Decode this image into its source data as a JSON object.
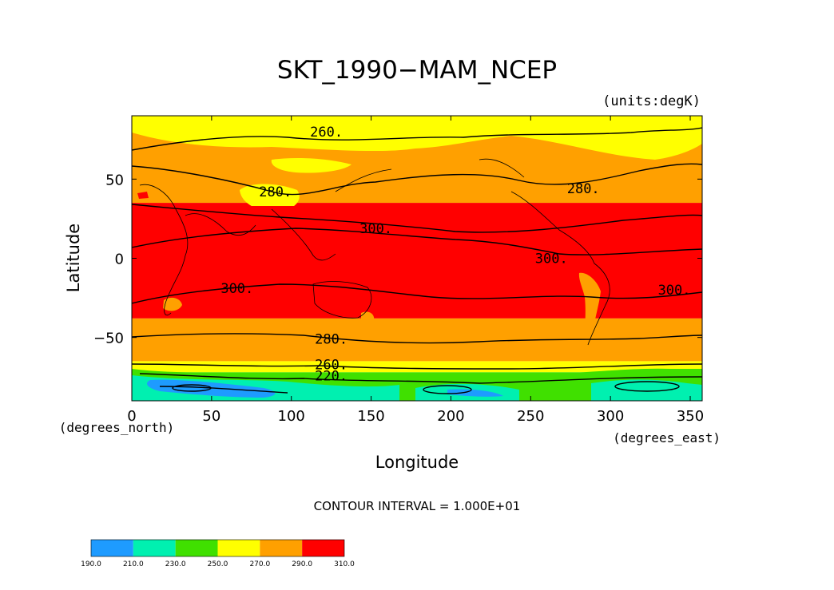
{
  "chart_data": {
    "type": "heatmap",
    "title": "SKT_1990−MAM_NCEP",
    "units_label": "(units:degK)",
    "xlabel": "Longitude",
    "ylabel": "Latitude",
    "x_unit_label": "(degrees_east)",
    "y_unit_label": "(degrees_north)",
    "xlim": [
      0,
      357.5
    ],
    "ylim": [
      -90,
      90
    ],
    "x_ticks": [
      {
        "value": 0,
        "label": "0"
      },
      {
        "value": 50,
        "label": "50"
      },
      {
        "value": 100,
        "label": "100"
      },
      {
        "value": 150,
        "label": "150"
      },
      {
        "value": 200,
        "label": "200"
      },
      {
        "value": 250,
        "label": "250"
      },
      {
        "value": 300,
        "label": "300"
      },
      {
        "value": 350,
        "label": "350"
      }
    ],
    "y_ticks": [
      {
        "value": 50,
        "label": "50"
      },
      {
        "value": 0,
        "label": "0"
      },
      {
        "value": -50,
        "label": "−50"
      }
    ],
    "contour_interval_text": "CONTOUR INTERVAL = 1.000E+01",
    "colorbar": {
      "levels": [
        "190.0",
        "210.0",
        "230.0",
        "250.0",
        "270.0",
        "290.0",
        "310.0"
      ],
      "colors": [
        "#1e9bff",
        "#00f0b0",
        "#40e000",
        "#ffff00",
        "#ffa000",
        "#ff0000"
      ]
    },
    "zonal_bands": [
      {
        "lat_top": 90,
        "lat_bottom": 80,
        "value_range": "250-270",
        "color": "#ffff00"
      },
      {
        "lat_top": 80,
        "lat_bottom": 35,
        "value_range": "270-290",
        "color": "#ffa000"
      },
      {
        "lat_top": 35,
        "lat_bottom": -38,
        "value_range": "290-310",
        "color": "#ff0000"
      },
      {
        "lat_top": -38,
        "lat_bottom": -65,
        "value_range": "270-290",
        "color": "#ffa000"
      },
      {
        "lat_top": -65,
        "lat_bottom": -72,
        "value_range": "250-270",
        "color": "#ffff00"
      },
      {
        "lat_top": -72,
        "lat_bottom": -78,
        "value_range": "230-250",
        "color": "#40e000"
      },
      {
        "lat_top": -78,
        "lat_bottom": -90,
        "value_range": "210-230",
        "color": "#00f0b0"
      }
    ],
    "contour_labels": [
      {
        "text": "260.",
        "lon": 122,
        "lat": 80
      },
      {
        "text": "280.",
        "lon": 90,
        "lat": 42
      },
      {
        "text": "280.",
        "lon": 283,
        "lat": 44
      },
      {
        "text": "300.",
        "lon": 153,
        "lat": 19
      },
      {
        "text": "300.",
        "lon": 263,
        "lat": 0
      },
      {
        "text": "300.",
        "lon": 66,
        "lat": -19
      },
      {
        "text": "300.",
        "lon": 340,
        "lat": -20
      },
      {
        "text": "280.",
        "lon": 125,
        "lat": -51
      },
      {
        "text": "260.",
        "lon": 125,
        "lat": -67
      },
      {
        "text": "220.",
        "lon": 125,
        "lat": -74
      }
    ]
  }
}
